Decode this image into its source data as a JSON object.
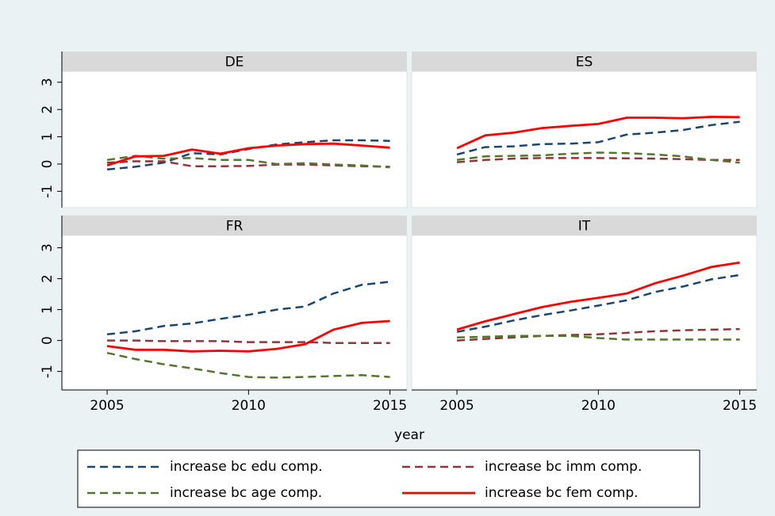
{
  "chart_data": [
    {
      "type": "line",
      "title": "DE",
      "xlabel": "year",
      "legend": "bottom",
      "x": [
        2005,
        2006,
        2007,
        2008,
        2009,
        2010,
        2011,
        2012,
        2013,
        2014,
        2015
      ],
      "xlim": [
        2003.4,
        2015.6
      ],
      "ylim": [
        -1.6,
        3.4
      ],
      "yticks": [
        -1,
        0,
        1,
        2,
        3
      ],
      "series": [
        {
          "name": "increase bc edu comp.",
          "color": "#1a476f",
          "dash": true,
          "values": [
            -0.2,
            -0.1,
            0.05,
            0.4,
            0.35,
            0.55,
            0.72,
            0.8,
            0.87,
            0.87,
            0.85
          ]
        },
        {
          "name": "increase bc imm comp.",
          "color": "#90353b",
          "dash": true,
          "values": [
            0.05,
            0.1,
            0.1,
            -0.08,
            -0.08,
            -0.07,
            -0.02,
            -0.02,
            -0.05,
            -0.08,
            -0.1
          ]
        },
        {
          "name": "increase bc age comp.",
          "color": "#55752f",
          "dash": true,
          "values": [
            0.15,
            0.3,
            0.2,
            0.22,
            0.15,
            0.15,
            0.0,
            0.03,
            -0.02,
            -0.05,
            -0.12
          ]
        },
        {
          "name": "increase bc fem comp.",
          "color": "#ff0000",
          "dash": false,
          "values": [
            -0.05,
            0.28,
            0.3,
            0.53,
            0.38,
            0.58,
            0.68,
            0.73,
            0.75,
            0.68,
            0.6
          ]
        }
      ]
    },
    {
      "type": "line",
      "title": "ES",
      "x": [
        2005,
        2006,
        2007,
        2008,
        2009,
        2010,
        2011,
        2012,
        2013,
        2014,
        2015
      ],
      "xlim": [
        2003.4,
        2015.6
      ],
      "ylim": [
        -1.6,
        3.4
      ],
      "series": [
        {
          "color": "#1a476f",
          "dash": true,
          "values": [
            0.35,
            0.62,
            0.65,
            0.73,
            0.75,
            0.8,
            1.08,
            1.15,
            1.25,
            1.43,
            1.55
          ]
        },
        {
          "color": "#90353b",
          "dash": true,
          "values": [
            0.07,
            0.15,
            0.2,
            0.22,
            0.22,
            0.22,
            0.21,
            0.2,
            0.18,
            0.15,
            0.15
          ]
        },
        {
          "color": "#55752f",
          "dash": true,
          "values": [
            0.15,
            0.28,
            0.3,
            0.32,
            0.38,
            0.42,
            0.4,
            0.35,
            0.28,
            0.15,
            0.05
          ]
        },
        {
          "color": "#ff0000",
          "dash": false,
          "values": [
            0.58,
            1.05,
            1.15,
            1.32,
            1.4,
            1.47,
            1.7,
            1.7,
            1.68,
            1.73,
            1.72
          ]
        }
      ]
    },
    {
      "type": "line",
      "title": "FR",
      "x": [
        2005,
        2006,
        2007,
        2008,
        2009,
        2010,
        2011,
        2012,
        2013,
        2014,
        2015
      ],
      "xlim": [
        2003.4,
        2015.6
      ],
      "xticks": [
        2005,
        2010,
        2015
      ],
      "ylim": [
        -1.6,
        3.4
      ],
      "yticks": [
        -1,
        0,
        1,
        2,
        3
      ],
      "series": [
        {
          "color": "#1a476f",
          "dash": true,
          "values": [
            0.2,
            0.3,
            0.47,
            0.55,
            0.7,
            0.83,
            1.0,
            1.1,
            1.52,
            1.8,
            1.9
          ]
        },
        {
          "color": "#90353b",
          "dash": true,
          "values": [
            0.0,
            0.0,
            -0.02,
            -0.02,
            -0.02,
            -0.05,
            -0.05,
            -0.05,
            -0.08,
            -0.08,
            -0.08
          ]
        },
        {
          "color": "#55752f",
          "dash": true,
          "values": [
            -0.4,
            -0.6,
            -0.77,
            -0.9,
            -1.05,
            -1.18,
            -1.2,
            -1.18,
            -1.15,
            -1.12,
            -1.18
          ]
        },
        {
          "color": "#ff0000",
          "dash": false,
          "values": [
            -0.18,
            -0.3,
            -0.3,
            -0.35,
            -0.33,
            -0.35,
            -0.27,
            -0.12,
            0.35,
            0.57,
            0.63
          ]
        }
      ]
    },
    {
      "type": "line",
      "title": "IT",
      "x": [
        2005,
        2006,
        2007,
        2008,
        2009,
        2010,
        2011,
        2012,
        2013,
        2014,
        2015
      ],
      "xlim": [
        2003.4,
        2015.6
      ],
      "xticks": [
        2005,
        2010,
        2015
      ],
      "ylim": [
        -1.6,
        3.4
      ],
      "series": [
        {
          "color": "#1a476f",
          "dash": true,
          "values": [
            0.28,
            0.45,
            0.65,
            0.82,
            0.97,
            1.13,
            1.3,
            1.57,
            1.75,
            1.98,
            2.12
          ]
        },
        {
          "color": "#90353b",
          "dash": true,
          "values": [
            0.0,
            0.05,
            0.1,
            0.15,
            0.18,
            0.2,
            0.25,
            0.3,
            0.33,
            0.35,
            0.37
          ]
        },
        {
          "color": "#55752f",
          "dash": true,
          "values": [
            0.1,
            0.12,
            0.15,
            0.15,
            0.15,
            0.08,
            0.03,
            0.03,
            0.03,
            0.03,
            0.03
          ]
        },
        {
          "color": "#ff0000",
          "dash": false,
          "values": [
            0.35,
            0.62,
            0.85,
            1.08,
            1.25,
            1.38,
            1.52,
            1.85,
            2.1,
            2.38,
            2.52
          ]
        }
      ]
    }
  ]
}
